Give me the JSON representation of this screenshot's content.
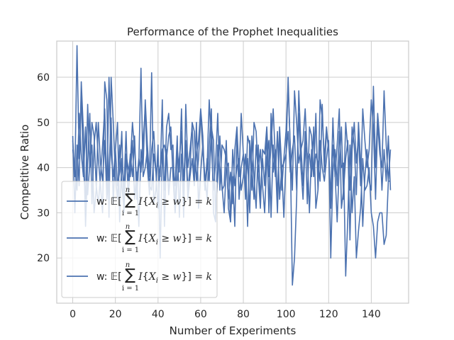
{
  "chart_data": {
    "type": "line",
    "title": "Performance of the Prophet Inequalities",
    "xlabel": "Number of Experiments",
    "ylabel": "Competitive Ratio",
    "xlim": [
      -7.5,
      157.5
    ],
    "ylim": [
      10,
      68
    ],
    "xticks": [
      0,
      20,
      40,
      60,
      80,
      100,
      120,
      140
    ],
    "yticks": [
      20,
      30,
      40,
      50,
      60
    ],
    "grid": true,
    "legend_placement": "lower-left",
    "line_color": "#4c72b0",
    "legend": {
      "prefix": "w:",
      "entries": [
        "w: 𝔼[ ∑ I{Xi ≥ w}] = k",
        "w: 𝔼[ ∑ I{Xi ≥ w}] = k",
        "w: 𝔼[ ∑ I{Xi ≥ w}] = k"
      ]
    },
    "series": [
      {
        "values": [
          47,
          30,
          45,
          36,
          59,
          48,
          27,
          41,
          52,
          32,
          45,
          50,
          42,
          36,
          30,
          59,
          55,
          29,
          60,
          50,
          38,
          33,
          45,
          36,
          31,
          43,
          40,
          38,
          46,
          33,
          39,
          27,
          44,
          40,
          55,
          45,
          38,
          61,
          32,
          35,
          45,
          20,
          44,
          45,
          42,
          47,
          49,
          38,
          30,
          44,
          39,
          53,
          33,
          46,
          35,
          40,
          50,
          48,
          37,
          42,
          52,
          44,
          38,
          33,
          45,
          53,
          30,
          28,
          45,
          39,
          36,
          30,
          40,
          41,
          28,
          38,
          27,
          48,
          33,
          40,
          43,
          36,
          42,
          30,
          47,
          38,
          31,
          45,
          33,
          42,
          36,
          48,
          30,
          52,
          39,
          44,
          33,
          49,
          40,
          29,
          42,
          60,
          44,
          14,
          20,
          33,
          57,
          45,
          36,
          48,
          32,
          49,
          47,
          38,
          43,
          41,
          37,
          54,
          39,
          48,
          44,
          31,
          45,
          39,
          28,
          41,
          49,
          33,
          50,
          44,
          35,
          49,
          45,
          34,
          50,
          41,
          27,
          38,
          44,
          37,
          35,
          58,
          40,
          52,
          46,
          35,
          44,
          37,
          47,
          35
        ]
      },
      {
        "values": [
          46,
          38,
          67,
          42,
          56,
          40,
          33,
          54,
          40,
          50,
          47,
          36,
          32,
          38,
          45,
          53,
          34,
          60,
          43,
          38,
          44,
          50,
          28,
          42,
          35,
          48,
          33,
          41,
          50,
          44,
          37,
          42,
          39,
          46,
          53,
          40,
          34,
          44,
          48,
          39,
          31,
          40,
          44,
          35,
          49,
          52,
          44,
          45,
          30,
          37,
          42,
          48,
          29,
          54,
          40,
          44,
          49,
          38,
          43,
          46,
          53,
          47,
          35,
          40,
          55,
          45,
          35,
          41,
          52,
          35,
          45,
          44,
          42,
          33,
          39,
          32,
          44,
          49,
          38,
          52,
          43,
          33,
          47,
          45,
          35,
          50,
          48,
          38,
          31,
          44,
          43,
          49,
          38,
          45,
          53,
          42,
          30,
          48,
          35,
          42,
          48,
          58,
          45,
          35,
          57,
          50,
          41,
          44,
          46,
          53,
          42,
          43,
          38,
          49,
          31,
          35,
          55,
          51,
          42,
          49,
          44,
          33,
          51,
          38,
          45,
          53,
          31,
          35,
          42,
          46,
          24,
          44,
          50,
          41,
          47,
          36,
          53,
          46,
          40,
          44,
          55,
          49,
          33,
          50,
          43,
          40,
          57,
          45,
          37,
          44
        ]
      },
      {
        "values": [
          44,
          40,
          35,
          52,
          43,
          38,
          49,
          34,
          41,
          45,
          30,
          35,
          50,
          41,
          37,
          46,
          33,
          39,
          51,
          32,
          44,
          36,
          39,
          48,
          30,
          42,
          37,
          43,
          38,
          47,
          33,
          41,
          62,
          38,
          40,
          44,
          36,
          35,
          43,
          39,
          41,
          38,
          55,
          27,
          44,
          34,
          40,
          40,
          36,
          47,
          29,
          43,
          38,
          45,
          33,
          38,
          42,
          36,
          50,
          31,
          39,
          45,
          35,
          42,
          37,
          49,
          46,
          29,
          38,
          47,
          35,
          36,
          46,
          31,
          28,
          44,
          36,
          40,
          42,
          35,
          38,
          43,
          27,
          46,
          40,
          33,
          45,
          39,
          44,
          36,
          30,
          42,
          46,
          29,
          45,
          38,
          48,
          33,
          40,
          41,
          43,
          48,
          39,
          44,
          47,
          35,
          52,
          40,
          33,
          45,
          43,
          30,
          44,
          38,
          52,
          35,
          46,
          40,
          37,
          42,
          46,
          20,
          39,
          44,
          36,
          48,
          40,
          41,
          16,
          29,
          45,
          30,
          38,
          20,
          26,
          31,
          42,
          35,
          36,
          40,
          30,
          27,
          20,
          28,
          30,
          30,
          23,
          25,
          37,
          37
        ]
      }
    ]
  }
}
